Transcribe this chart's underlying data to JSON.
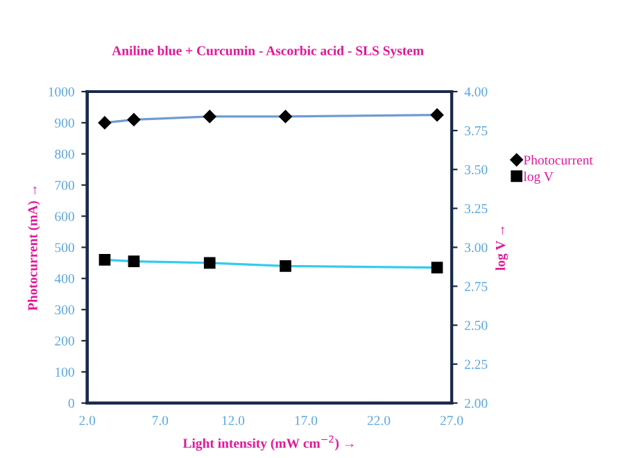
{
  "chart_data": {
    "type": "line",
    "title": "Aniline blue + Curcumin - Ascorbic acid - SLS System",
    "xlabel": "Light intensity (mW cm$^{−2}$) →",
    "ylabel": "Photocurrent (mA) →",
    "y2label": "log V →",
    "x": [
      3.2,
      5.2,
      10.4,
      15.6,
      26.0
    ],
    "series": [
      {
        "name": "Photocurrent",
        "color": "#6f9bd1",
        "marker": "diamond",
        "values": [
          900,
          910,
          920,
          920,
          925
        ]
      },
      {
        "name": "log V",
        "color": "#33ccee",
        "marker": "square",
        "axis": "y2",
        "values": [
          2.92,
          2.91,
          2.9,
          2.88,
          2.87
        ]
      }
    ],
    "xlim": [
      2.0,
      27.0
    ],
    "xticks": [
      {
        "value": 2,
        "label": "2.0"
      },
      {
        "value": 7,
        "label": "7.0"
      },
      {
        "value": 12,
        "label": "12.0"
      },
      {
        "value": 17,
        "label": "17.0"
      },
      {
        "value": 22,
        "label": "22.0"
      },
      {
        "value": 27,
        "label": "27.0"
      }
    ],
    "ylim": [
      0,
      1000
    ],
    "yticks": [
      0,
      100,
      200,
      300,
      400,
      500,
      600,
      700,
      800,
      900,
      1000
    ],
    "y2lim": [
      2.0,
      4.0
    ],
    "y2ticks": [
      {
        "value": 2,
        "label": "2.00"
      },
      {
        "value": 2.25,
        "label": "2.25"
      },
      {
        "value": 2.5,
        "label": "2.50"
      },
      {
        "value": 2.75,
        "label": "2.75"
      },
      {
        "value": 3,
        "label": "3.00"
      },
      {
        "value": 3.25,
        "label": "3.25"
      },
      {
        "value": 3.5,
        "label": "3.50"
      },
      {
        "value": 3.75,
        "label": "3.75"
      },
      {
        "value": 4,
        "label": "4.00"
      }
    ],
    "grid": false,
    "legend": "right",
    "line_style": "solid"
  }
}
